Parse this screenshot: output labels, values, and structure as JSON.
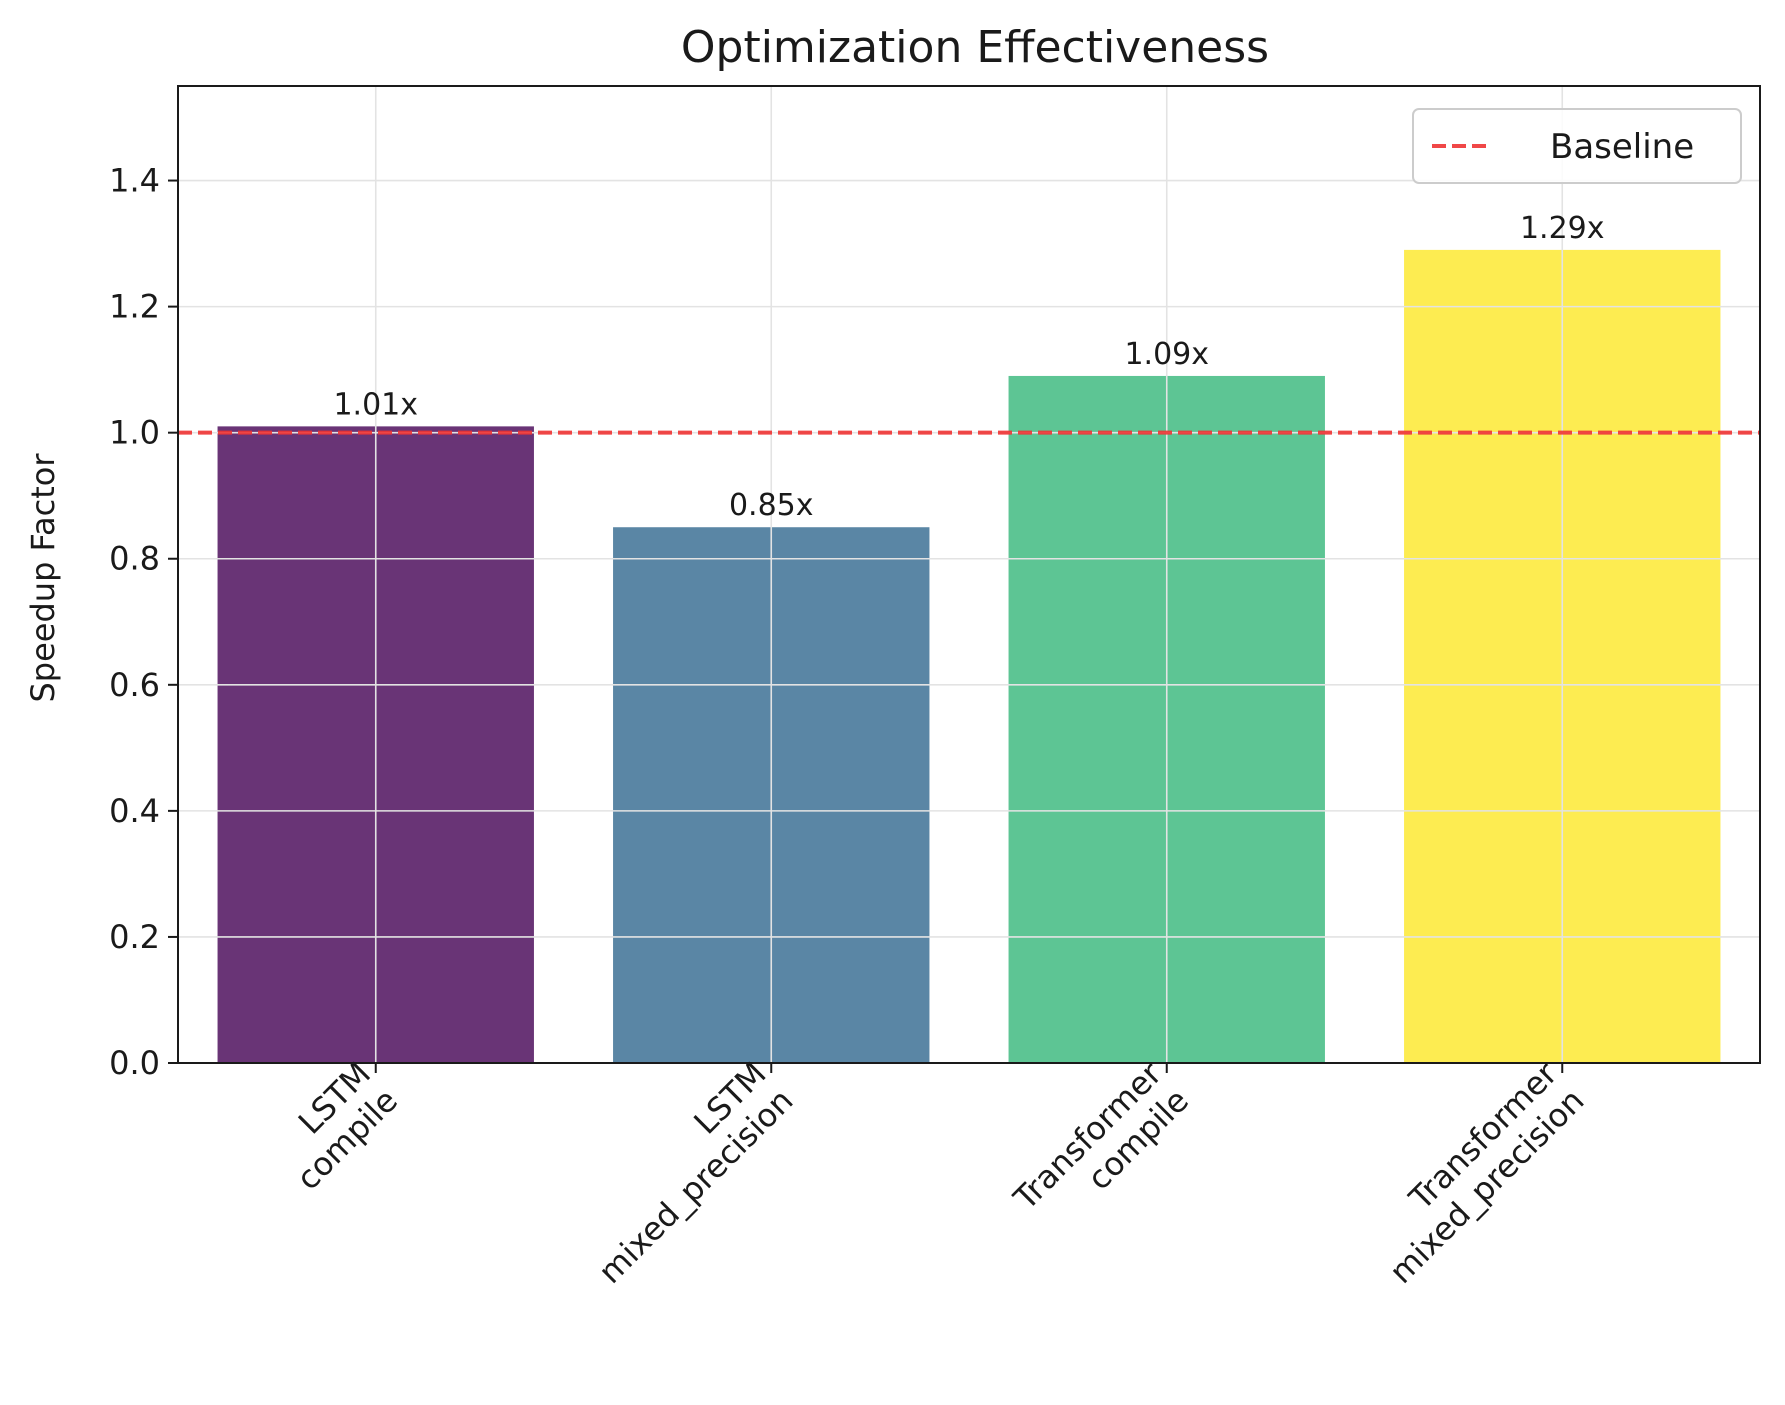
{
  "chart_data": {
    "type": "bar",
    "title": "Optimization Effectiveness",
    "xlabel": "",
    "ylabel": "Speedup Factor",
    "categories": [
      [
        "LSTM",
        "compile"
      ],
      [
        "LSTM",
        "mixed_precision"
      ],
      [
        "Transformer",
        "compile"
      ],
      [
        "Transformer",
        "mixed_precision"
      ]
    ],
    "values": [
      1.01,
      0.85,
      1.09,
      1.29
    ],
    "data_labels": [
      "1.01x",
      "0.85x",
      "1.09x",
      "1.29x"
    ],
    "colors": [
      "#440154",
      "#31688e",
      "#35b779",
      "#fde725"
    ],
    "bar_opacity": 0.8,
    "ylim": [
      0,
      1.55
    ],
    "yticks": [
      0.0,
      0.2,
      0.4,
      0.6,
      0.8,
      1.0,
      1.2,
      1.4
    ],
    "ytick_labels": [
      "0.0",
      "0.2",
      "0.4",
      "0.6",
      "0.8",
      "1.0",
      "1.2",
      "1.4"
    ],
    "grid": true,
    "reference_line": {
      "name": "Baseline",
      "value": 1.0,
      "color": "#ee3333",
      "style": "dashed"
    },
    "legend": {
      "placement": "top-right",
      "entries": [
        "Baseline"
      ]
    }
  }
}
